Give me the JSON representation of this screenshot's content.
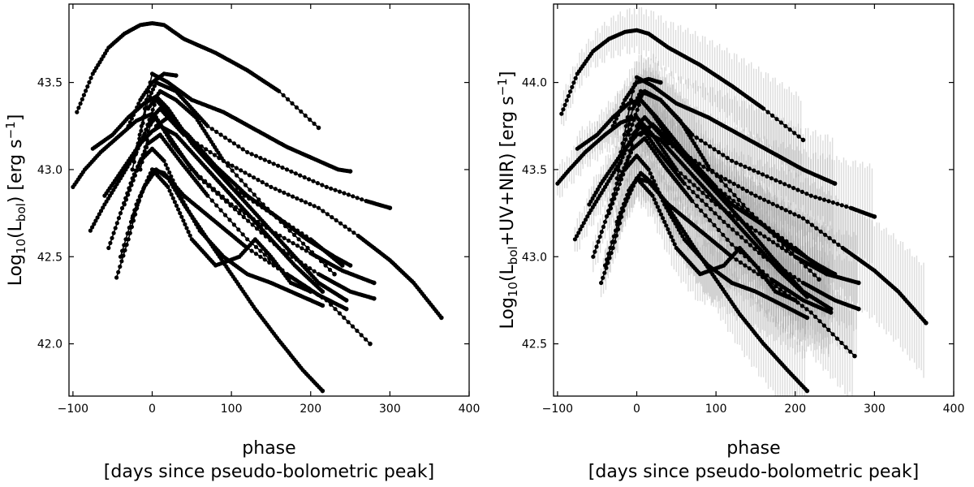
{
  "chart_data": [
    {
      "type": "line",
      "title": "",
      "xlabel": "phase",
      "xlabel_line2": "[days since pseudo-bolometric peak]",
      "ylabel_prefix": "Log",
      "ylabel_base": "10",
      "ylabel_open": "(L",
      "ylabel_sub": "bol",
      "ylabel_close": ") [erg s",
      "ylabel_exp": "−1",
      "ylabel_end": "]",
      "xlim": [
        -105,
        400
      ],
      "ylim": [
        41.7,
        43.95
      ],
      "xticks": [
        -100,
        0,
        100,
        200,
        300,
        400
      ],
      "xtick_labels": [
        "−100",
        "0",
        "100",
        "200",
        "300",
        "400"
      ],
      "yticks": [
        42.0,
        42.5,
        43.0,
        43.5
      ],
      "ytick_labels": [
        "42.0",
        "42.5",
        "43.0",
        "43.5"
      ],
      "grid": false,
      "legend": "none",
      "color": "#000000",
      "error_band": false,
      "series": [
        {
          "x": [
            -95,
            -75,
            -55,
            -35,
            -15,
            0,
            15,
            40,
            80,
            120,
            160,
            210
          ],
          "y": [
            43.33,
            43.55,
            43.7,
            43.78,
            43.83,
            43.84,
            43.83,
            43.75,
            43.67,
            43.57,
            43.45,
            43.24
          ]
        },
        {
          "x": [
            -20,
            -5,
            0,
            20,
            50,
            90,
            130,
            170,
            210,
            235,
            250
          ],
          "y": [
            43.1,
            43.45,
            43.55,
            43.5,
            43.4,
            43.33,
            43.23,
            43.13,
            43.05,
            43.0,
            42.99
          ]
        },
        {
          "x": [
            -25,
            -5,
            5,
            30,
            70,
            120,
            170,
            220,
            270,
            300
          ],
          "y": [
            43.0,
            43.4,
            43.5,
            43.45,
            43.25,
            43.1,
            43.0,
            42.9,
            42.82,
            42.78
          ]
        },
        {
          "x": [
            -15,
            0,
            10,
            40,
            90,
            150,
            210,
            260,
            300,
            330,
            365
          ],
          "y": [
            43.0,
            43.3,
            43.35,
            43.2,
            43.05,
            42.9,
            42.78,
            42.62,
            42.48,
            42.35,
            42.15
          ]
        },
        {
          "x": [
            -100,
            -85,
            -65,
            -40,
            -20,
            0,
            20,
            50,
            100,
            150,
            200,
            240,
            280
          ],
          "y": [
            42.9,
            43.0,
            43.1,
            43.2,
            43.28,
            43.32,
            43.2,
            43.0,
            42.8,
            42.65,
            42.52,
            42.42,
            42.35
          ]
        },
        {
          "x": [
            -78,
            -60,
            -40,
            -20,
            -5,
            5,
            25,
            60,
            110,
            160,
            210,
            250,
            280
          ],
          "y": [
            42.65,
            42.8,
            42.95,
            43.1,
            43.25,
            43.3,
            43.15,
            42.95,
            42.75,
            42.55,
            42.4,
            42.3,
            42.26
          ]
        },
        {
          "x": [
            -75,
            -50,
            -30,
            -10,
            5,
            20,
            50,
            90,
            130,
            170,
            210,
            245
          ],
          "y": [
            43.12,
            43.2,
            43.3,
            43.38,
            43.42,
            43.35,
            43.15,
            42.95,
            42.75,
            42.55,
            42.35,
            42.25
          ]
        },
        {
          "x": [
            -45,
            -30,
            -15,
            0,
            15,
            40,
            80,
            120,
            170,
            220,
            275
          ],
          "y": [
            42.38,
            42.6,
            42.85,
            43.0,
            42.98,
            42.85,
            42.7,
            42.55,
            42.4,
            42.25,
            42.0
          ]
        },
        {
          "x": [
            -25,
            -10,
            5,
            20,
            40,
            70,
            100,
            130,
            160,
            190,
            215
          ],
          "y": [
            42.72,
            42.9,
            43.0,
            42.95,
            42.8,
            42.6,
            42.4,
            42.2,
            42.02,
            41.85,
            41.73
          ]
        },
        {
          "x": [
            -35,
            -15,
            0,
            15,
            35,
            60,
            90,
            120,
            150,
            185,
            215
          ],
          "y": [
            42.8,
            43.05,
            43.12,
            43.05,
            42.85,
            42.65,
            42.5,
            42.4,
            42.35,
            42.28,
            42.22
          ]
        },
        {
          "x": [
            -40,
            -20,
            0,
            20,
            50,
            80,
            110,
            130,
            150,
            175,
            200
          ],
          "y": [
            42.5,
            42.8,
            43.0,
            42.9,
            42.6,
            42.45,
            42.5,
            42.6,
            42.5,
            42.35,
            42.3
          ]
        },
        {
          "x": [
            -10,
            5,
            25,
            60,
            100,
            150,
            200,
            240
          ],
          "y": [
            43.2,
            43.4,
            43.3,
            43.1,
            42.9,
            42.75,
            42.6,
            42.45
          ]
        },
        {
          "x": [
            -5,
            10,
            30,
            55,
            90,
            140,
            185,
            230
          ],
          "y": [
            43.35,
            43.45,
            43.4,
            43.3,
            43.05,
            42.8,
            42.6,
            42.4
          ]
        },
        {
          "x": [
            -55,
            -40,
            -25,
            -5,
            10,
            35,
            70,
            120,
            170,
            210,
            245
          ],
          "y": [
            42.55,
            42.75,
            42.95,
            43.15,
            43.2,
            43.05,
            42.85,
            42.6,
            42.4,
            42.28,
            42.2
          ]
        },
        {
          "x": [
            -30,
            -15,
            0,
            15,
            30
          ],
          "y": [
            43.25,
            43.4,
            43.5,
            43.55,
            43.54
          ]
        },
        {
          "x": [
            -60,
            -45,
            -30,
            -15,
            0,
            10,
            30,
            60,
            100,
            140,
            180,
            215
          ],
          "y": [
            42.85,
            42.95,
            43.05,
            43.15,
            43.22,
            43.25,
            43.2,
            43.05,
            42.85,
            42.65,
            42.45,
            42.3
          ]
        },
        {
          "x": [
            5,
            20,
            45,
            80,
            120,
            160,
            195,
            230,
            250
          ],
          "y": [
            43.25,
            43.3,
            43.2,
            43.02,
            42.85,
            42.72,
            42.6,
            42.5,
            42.45
          ]
        }
      ]
    },
    {
      "type": "line",
      "title": "",
      "xlabel": "phase",
      "xlabel_line2": "[days since pseudo-bolometric peak]",
      "ylabel_prefix": "Log",
      "ylabel_base": "10",
      "ylabel_open": "(L",
      "ylabel_sub": "bol",
      "ylabel_close": "+UV+NIR) [erg s",
      "ylabel_exp": "−1",
      "ylabel_end": "]",
      "xlim": [
        -105,
        400
      ],
      "ylim": [
        42.2,
        44.45
      ],
      "xticks": [
        -100,
        0,
        100,
        200,
        300,
        400
      ],
      "xtick_labels": [
        "−100",
        "0",
        "100",
        "200",
        "300",
        "400"
      ],
      "yticks": [
        42.5,
        43.0,
        43.5,
        44.0
      ],
      "ytick_labels": [
        "42.5",
        "43.0",
        "43.5",
        "44.0"
      ],
      "grid": false,
      "legend": "none",
      "color": "#000000",
      "error_band": true,
      "error_color": "#9a9a9a",
      "series": [
        {
          "x": [
            -95,
            -75,
            -55,
            -35,
            -15,
            0,
            15,
            40,
            80,
            120,
            160,
            210
          ],
          "y": [
            43.82,
            44.05,
            44.18,
            44.25,
            44.29,
            44.3,
            44.28,
            44.2,
            44.1,
            43.98,
            43.85,
            43.67
          ]
        },
        {
          "x": [
            -20,
            -5,
            0,
            20,
            50,
            90,
            130,
            170,
            210,
            235,
            250
          ],
          "y": [
            43.6,
            43.95,
            44.03,
            43.98,
            43.88,
            43.8,
            43.7,
            43.6,
            43.5,
            43.45,
            43.42
          ]
        },
        {
          "x": [
            -25,
            -5,
            5,
            30,
            70,
            120,
            170,
            220,
            270,
            300
          ],
          "y": [
            43.45,
            43.85,
            43.95,
            43.9,
            43.7,
            43.55,
            43.45,
            43.35,
            43.28,
            43.23
          ]
        },
        {
          "x": [
            -15,
            0,
            10,
            40,
            90,
            150,
            210,
            260,
            300,
            330,
            365
          ],
          "y": [
            43.5,
            43.75,
            43.8,
            43.65,
            43.5,
            43.35,
            43.22,
            43.05,
            42.92,
            42.8,
            42.62
          ]
        },
        {
          "x": [
            -100,
            -85,
            -65,
            -40,
            -20,
            0,
            20,
            50,
            100,
            150,
            200,
            240,
            280
          ],
          "y": [
            43.42,
            43.5,
            43.6,
            43.7,
            43.77,
            43.8,
            43.7,
            43.5,
            43.3,
            43.15,
            43.0,
            42.9,
            42.85
          ]
        },
        {
          "x": [
            -78,
            -60,
            -40,
            -20,
            -5,
            5,
            25,
            60,
            110,
            160,
            210,
            250,
            280
          ],
          "y": [
            43.1,
            43.25,
            43.4,
            43.55,
            43.7,
            43.75,
            43.62,
            43.42,
            43.2,
            43.0,
            42.85,
            42.75,
            42.7
          ]
        },
        {
          "x": [
            -75,
            -50,
            -30,
            -10,
            5,
            20,
            50,
            90,
            130,
            170,
            210,
            245
          ],
          "y": [
            43.62,
            43.7,
            43.8,
            43.88,
            43.9,
            43.82,
            43.62,
            43.42,
            43.22,
            43.0,
            42.8,
            42.7
          ]
        },
        {
          "x": [
            -45,
            -30,
            -15,
            0,
            15,
            40,
            80,
            120,
            170,
            220,
            275
          ],
          "y": [
            42.85,
            43.05,
            43.3,
            43.45,
            43.43,
            43.3,
            43.15,
            43.0,
            42.85,
            42.68,
            42.43
          ]
        },
        {
          "x": [
            -25,
            -10,
            5,
            20,
            40,
            70,
            100,
            130,
            160,
            190,
            215
          ],
          "y": [
            43.2,
            43.38,
            43.48,
            43.42,
            43.28,
            43.07,
            42.87,
            42.67,
            42.5,
            42.35,
            42.23
          ]
        },
        {
          "x": [
            -35,
            -15,
            0,
            15,
            35,
            60,
            90,
            120,
            150,
            185,
            215
          ],
          "y": [
            43.25,
            43.5,
            43.58,
            43.5,
            43.3,
            43.1,
            42.95,
            42.85,
            42.8,
            42.72,
            42.65
          ]
        },
        {
          "x": [
            -40,
            -20,
            0,
            20,
            50,
            80,
            110,
            130,
            150,
            175,
            200
          ],
          "y": [
            42.95,
            43.25,
            43.45,
            43.35,
            43.05,
            42.9,
            42.95,
            43.05,
            42.95,
            42.8,
            42.75
          ]
        },
        {
          "x": [
            -10,
            5,
            25,
            60,
            100,
            150,
            200,
            240
          ],
          "y": [
            43.7,
            43.9,
            43.8,
            43.6,
            43.4,
            43.22,
            43.05,
            42.9
          ]
        },
        {
          "x": [
            -5,
            10,
            30,
            55,
            90,
            140,
            185,
            230
          ],
          "y": [
            43.85,
            43.95,
            43.9,
            43.78,
            43.52,
            43.27,
            43.07,
            42.87
          ]
        },
        {
          "x": [
            -55,
            -40,
            -25,
            -5,
            10,
            35,
            70,
            120,
            170,
            210,
            245
          ],
          "y": [
            43.0,
            43.2,
            43.42,
            43.62,
            43.68,
            43.52,
            43.32,
            43.07,
            42.87,
            42.75,
            42.68
          ]
        },
        {
          "x": [
            -30,
            -15,
            0,
            15,
            30
          ],
          "y": [
            43.75,
            43.9,
            44.0,
            44.02,
            44.0
          ]
        },
        {
          "x": [
            -60,
            -45,
            -30,
            -15,
            0,
            10,
            30,
            60,
            100,
            140,
            180,
            215
          ],
          "y": [
            43.3,
            43.42,
            43.52,
            43.62,
            43.7,
            43.72,
            43.67,
            43.52,
            43.32,
            43.12,
            42.92,
            42.77
          ]
        },
        {
          "x": [
            5,
            20,
            45,
            80,
            120,
            160,
            195,
            230,
            250
          ],
          "y": [
            43.7,
            43.76,
            43.65,
            43.48,
            43.3,
            43.18,
            43.05,
            42.95,
            42.9
          ]
        }
      ]
    }
  ]
}
